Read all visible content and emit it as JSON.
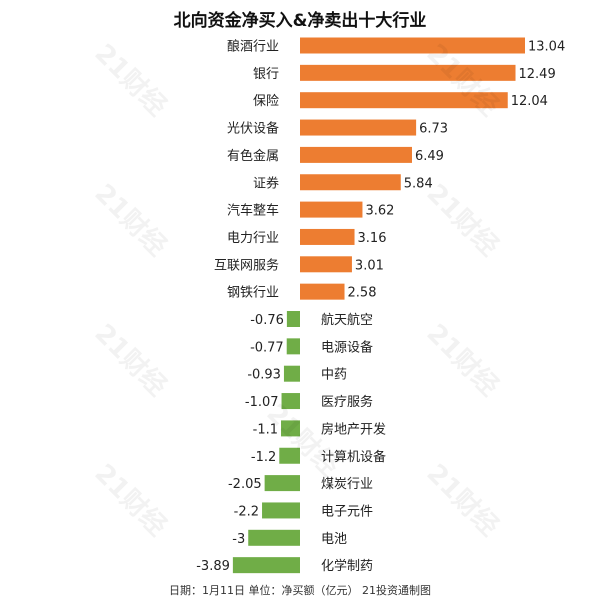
{
  "chart_data": {
    "type": "bar",
    "orientation": "horizontal",
    "title": "北向资金净买入&净卖出十大行业",
    "categories": [
      "酿酒行业",
      "银行",
      "保险",
      "光伏设备",
      "有色金属",
      "证券",
      "汽车整车",
      "电力行业",
      "互联网服务",
      "钢铁行业",
      "航天航空",
      "电源设备",
      "中药",
      "医疗服务",
      "房地产开发",
      "计算机设备",
      "煤炭行业",
      "电子元件",
      "电池",
      "化学制药"
    ],
    "values": [
      13.04,
      12.49,
      12.04,
      6.73,
      6.49,
      5.84,
      3.62,
      3.16,
      3.01,
      2.58,
      -0.76,
      -0.77,
      -0.93,
      -1.07,
      -1.1,
      -1.2,
      -2.05,
      -2.2,
      -3,
      -3.89
    ],
    "value_labels": [
      "13.04",
      "12.49",
      "12.04",
      "6.73",
      "6.49",
      "5.84",
      "3.62",
      "3.16",
      "3.01",
      "2.58",
      "-0.76",
      "-0.77",
      "-0.93",
      "-1.07",
      "-1.1",
      "-1.2",
      "-2.05",
      "-2.2",
      "-3",
      "-3.89"
    ],
    "xlim": [
      -3.89,
      13.04
    ],
    "grid": false,
    "legend": "none",
    "colors": {
      "positive": "#ed7d31",
      "negative": "#70ad47"
    }
  },
  "footer": "日期：1月11日 单位：净买额（亿元） 21投资通制图",
  "watermark": "21财经"
}
